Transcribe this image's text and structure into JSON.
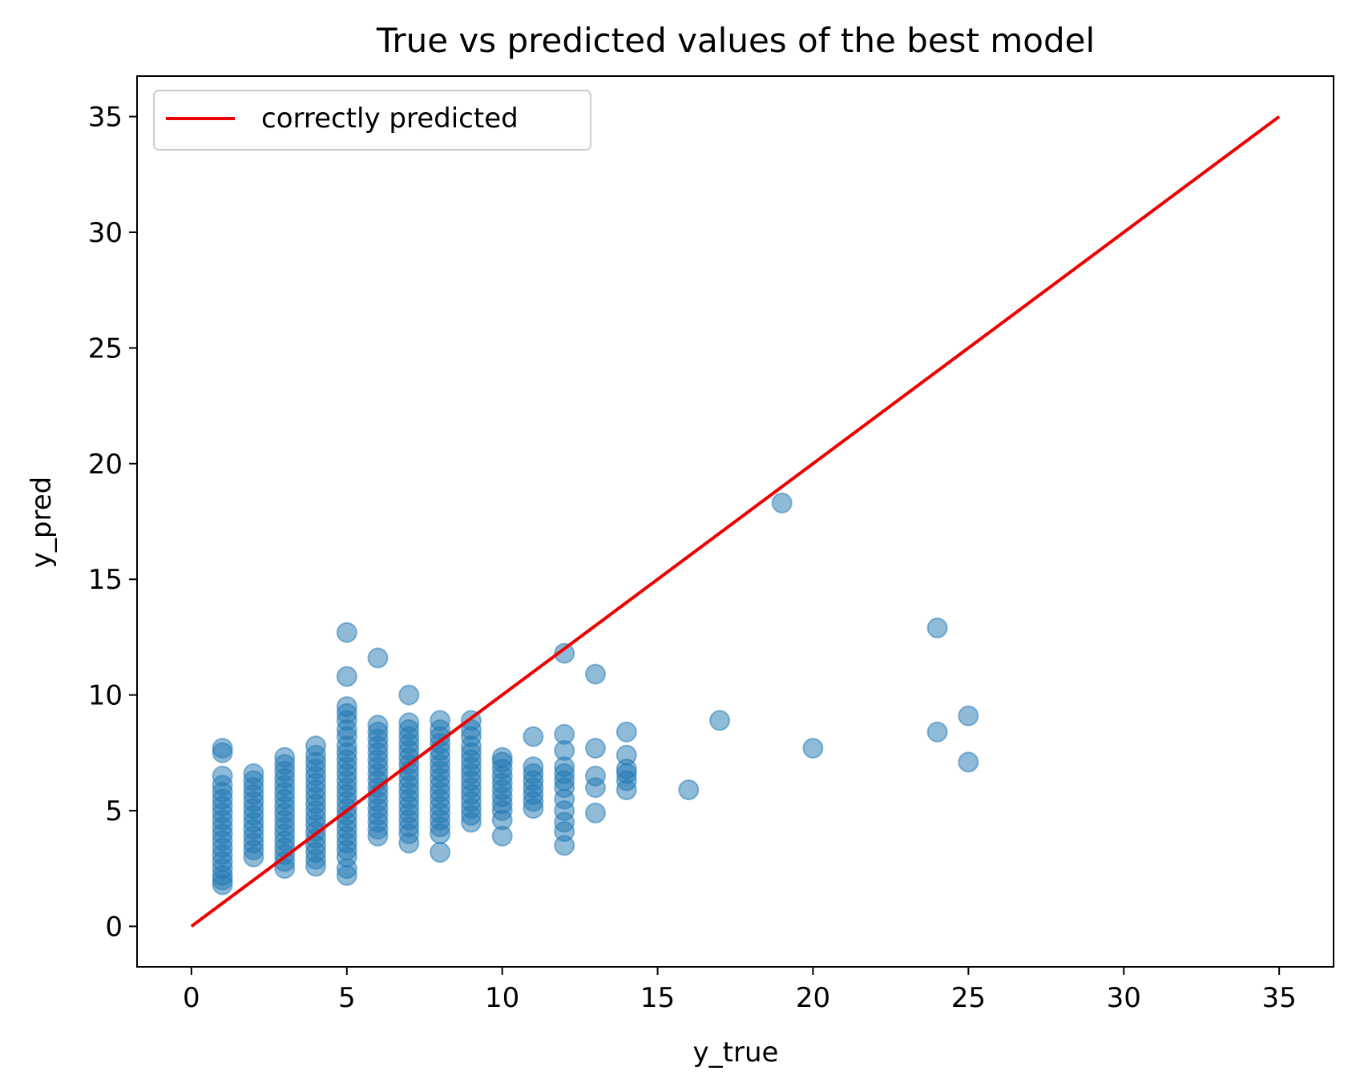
{
  "chart_data": {
    "type": "scatter",
    "title": "True vs predicted values of the best model",
    "xlabel": "y_true",
    "ylabel": "y_pred",
    "xlim": [
      -1.75,
      36.75
    ],
    "ylim": [
      -1.75,
      36.75
    ],
    "xticks": [
      0,
      5,
      10,
      15,
      20,
      25,
      30,
      35
    ],
    "yticks": [
      0,
      5,
      10,
      15,
      20,
      25,
      30,
      35
    ],
    "legend": {
      "placement": "top-left",
      "entries": [
        "correctly predicted"
      ]
    },
    "grid": false,
    "colors": {
      "points": "#1f77b4",
      "line": "#ee0000",
      "axes": "#000000"
    },
    "series": [
      {
        "kind": "scatter",
        "point_alpha": 0.5,
        "points": [
          [
            1,
            1.8
          ],
          [
            1,
            2.0
          ],
          [
            1,
            2.2
          ],
          [
            1,
            2.5
          ],
          [
            1,
            2.8
          ],
          [
            1,
            3.1
          ],
          [
            1,
            3.4
          ],
          [
            1,
            3.7
          ],
          [
            1,
            4.0
          ],
          [
            1,
            4.3
          ],
          [
            1,
            4.6
          ],
          [
            1,
            4.9
          ],
          [
            1,
            5.2
          ],
          [
            1,
            5.5
          ],
          [
            1,
            5.8
          ],
          [
            1,
            6.1
          ],
          [
            1,
            6.5
          ],
          [
            1,
            7.5
          ],
          [
            1,
            7.7
          ],
          [
            2,
            3.0
          ],
          [
            2,
            3.3
          ],
          [
            2,
            3.6
          ],
          [
            2,
            3.9
          ],
          [
            2,
            4.2
          ],
          [
            2,
            4.5
          ],
          [
            2,
            4.8
          ],
          [
            2,
            5.1
          ],
          [
            2,
            5.4
          ],
          [
            2,
            5.7
          ],
          [
            2,
            6.0
          ],
          [
            2,
            6.3
          ],
          [
            2,
            6.6
          ],
          [
            3,
            2.5
          ],
          [
            3,
            2.8
          ],
          [
            3,
            3.1
          ],
          [
            3,
            3.4
          ],
          [
            3,
            3.7
          ],
          [
            3,
            4.0
          ],
          [
            3,
            4.3
          ],
          [
            3,
            4.6
          ],
          [
            3,
            4.9
          ],
          [
            3,
            5.2
          ],
          [
            3,
            5.5
          ],
          [
            3,
            5.8
          ],
          [
            3,
            6.1
          ],
          [
            3,
            6.4
          ],
          [
            3,
            6.7
          ],
          [
            3,
            7.0
          ],
          [
            3,
            7.3
          ],
          [
            4,
            2.6
          ],
          [
            4,
            2.9
          ],
          [
            4,
            3.2
          ],
          [
            4,
            3.5
          ],
          [
            4,
            3.8
          ],
          [
            4,
            4.1
          ],
          [
            4,
            4.4
          ],
          [
            4,
            4.7
          ],
          [
            4,
            5.0
          ],
          [
            4,
            5.3
          ],
          [
            4,
            5.6
          ],
          [
            4,
            5.9
          ],
          [
            4,
            6.2
          ],
          [
            4,
            6.5
          ],
          [
            4,
            6.8
          ],
          [
            4,
            7.1
          ],
          [
            4,
            7.4
          ],
          [
            4,
            7.8
          ],
          [
            5,
            2.2
          ],
          [
            5,
            2.5
          ],
          [
            5,
            3.0
          ],
          [
            5,
            3.3
          ],
          [
            5,
            3.6
          ],
          [
            5,
            3.9
          ],
          [
            5,
            4.2
          ],
          [
            5,
            4.5
          ],
          [
            5,
            4.8
          ],
          [
            5,
            5.1
          ],
          [
            5,
            5.4
          ],
          [
            5,
            5.7
          ],
          [
            5,
            6.0
          ],
          [
            5,
            6.3
          ],
          [
            5,
            6.6
          ],
          [
            5,
            6.9
          ],
          [
            5,
            7.2
          ],
          [
            5,
            7.5
          ],
          [
            5,
            7.8
          ],
          [
            5,
            8.2
          ],
          [
            5,
            8.5
          ],
          [
            5,
            8.9
          ],
          [
            5,
            9.2
          ],
          [
            5,
            9.5
          ],
          [
            5,
            10.8
          ],
          [
            5,
            12.7
          ],
          [
            6,
            3.9
          ],
          [
            6,
            4.2
          ],
          [
            6,
            4.5
          ],
          [
            6,
            4.8
          ],
          [
            6,
            5.1
          ],
          [
            6,
            5.4
          ],
          [
            6,
            5.7
          ],
          [
            6,
            6.0
          ],
          [
            6,
            6.3
          ],
          [
            6,
            6.6
          ],
          [
            6,
            6.9
          ],
          [
            6,
            7.2
          ],
          [
            6,
            7.5
          ],
          [
            6,
            7.8
          ],
          [
            6,
            8.1
          ],
          [
            6,
            8.4
          ],
          [
            6,
            8.7
          ],
          [
            6,
            11.6
          ],
          [
            7,
            3.6
          ],
          [
            7,
            4.0
          ],
          [
            7,
            4.3
          ],
          [
            7,
            4.6
          ],
          [
            7,
            4.9
          ],
          [
            7,
            5.2
          ],
          [
            7,
            5.5
          ],
          [
            7,
            5.8
          ],
          [
            7,
            6.1
          ],
          [
            7,
            6.4
          ],
          [
            7,
            6.7
          ],
          [
            7,
            7.0
          ],
          [
            7,
            7.3
          ],
          [
            7,
            7.6
          ],
          [
            7,
            7.9
          ],
          [
            7,
            8.2
          ],
          [
            7,
            8.5
          ],
          [
            7,
            8.8
          ],
          [
            7,
            10.0
          ],
          [
            8,
            3.2
          ],
          [
            8,
            4.0
          ],
          [
            8,
            4.3
          ],
          [
            8,
            4.6
          ],
          [
            8,
            4.9
          ],
          [
            8,
            5.2
          ],
          [
            8,
            5.5
          ],
          [
            8,
            5.8
          ],
          [
            8,
            6.1
          ],
          [
            8,
            6.4
          ],
          [
            8,
            6.7
          ],
          [
            8,
            7.0
          ],
          [
            8,
            7.3
          ],
          [
            8,
            7.6
          ],
          [
            8,
            7.9
          ],
          [
            8,
            8.2
          ],
          [
            8,
            8.5
          ],
          [
            8,
            8.9
          ],
          [
            9,
            4.5
          ],
          [
            9,
            4.8
          ],
          [
            9,
            5.1
          ],
          [
            9,
            5.4
          ],
          [
            9,
            5.7
          ],
          [
            9,
            6.0
          ],
          [
            9,
            6.3
          ],
          [
            9,
            6.6
          ],
          [
            9,
            6.9
          ],
          [
            9,
            7.2
          ],
          [
            9,
            7.5
          ],
          [
            9,
            7.8
          ],
          [
            9,
            8.2
          ],
          [
            9,
            8.5
          ],
          [
            9,
            8.9
          ],
          [
            10,
            3.9
          ],
          [
            10,
            4.6
          ],
          [
            10,
            5.0
          ],
          [
            10,
            5.3
          ],
          [
            10,
            5.6
          ],
          [
            10,
            5.9
          ],
          [
            10,
            6.2
          ],
          [
            10,
            6.5
          ],
          [
            10,
            6.8
          ],
          [
            10,
            7.1
          ],
          [
            10,
            7.3
          ],
          [
            11,
            5.1
          ],
          [
            11,
            5.4
          ],
          [
            11,
            5.7
          ],
          [
            11,
            6.0
          ],
          [
            11,
            6.3
          ],
          [
            11,
            6.6
          ],
          [
            11,
            6.9
          ],
          [
            11,
            8.2
          ],
          [
            12,
            3.5
          ],
          [
            12,
            4.1
          ],
          [
            12,
            4.5
          ],
          [
            12,
            5.0
          ],
          [
            12,
            5.5
          ],
          [
            12,
            6.0
          ],
          [
            12,
            6.3
          ],
          [
            12,
            6.6
          ],
          [
            12,
            6.9
          ],
          [
            12,
            7.6
          ],
          [
            12,
            8.3
          ],
          [
            12,
            11.8
          ],
          [
            13,
            4.9
          ],
          [
            13,
            6.0
          ],
          [
            13,
            6.5
          ],
          [
            13,
            7.7
          ],
          [
            13,
            10.9
          ],
          [
            14,
            5.9
          ],
          [
            14,
            6.3
          ],
          [
            14,
            6.6
          ],
          [
            14,
            6.8
          ],
          [
            14,
            7.4
          ],
          [
            14,
            8.4
          ],
          [
            16,
            5.9
          ],
          [
            17,
            8.9
          ],
          [
            19,
            18.3
          ],
          [
            20,
            7.7
          ],
          [
            24,
            8.4
          ],
          [
            24,
            12.9
          ],
          [
            25,
            7.1
          ],
          [
            25,
            9.1
          ]
        ]
      },
      {
        "kind": "line",
        "name": "correctly predicted",
        "x": [
          0,
          35
        ],
        "y": [
          0,
          35
        ]
      }
    ]
  }
}
